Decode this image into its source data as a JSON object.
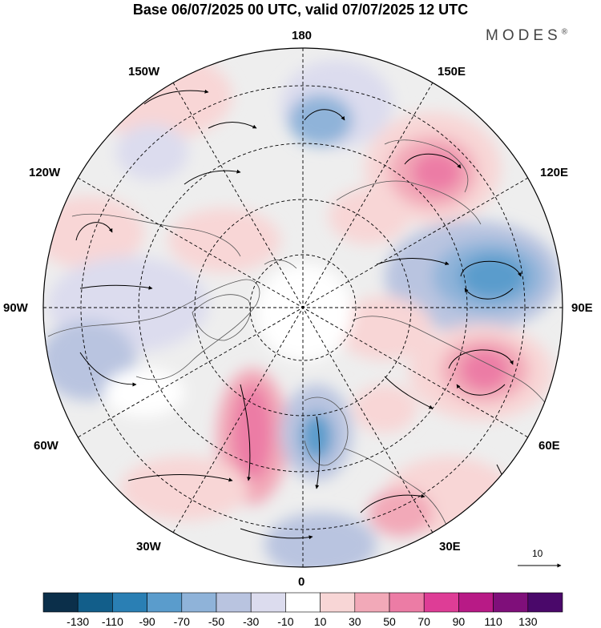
{
  "title": "Base 06/07/2025 00 UTC, valid 07/07/2025 12 UTC",
  "brand": "MODES",
  "brand_mark": "®",
  "longitude_labels": {
    "n180": "180",
    "w150": "150W",
    "e150": "150E",
    "w120": "120W",
    "e120": "120E",
    "w90": "90W",
    "e90": "90E",
    "w60": "60W",
    "e60": "60E",
    "w30": "30W",
    "e30": "30E",
    "s0": "0"
  },
  "reference_vector": {
    "label": "10"
  },
  "colorbar": {
    "labels": [
      "-130",
      "-110",
      "-90",
      "-70",
      "-50",
      "-30",
      "-10",
      "10",
      "30",
      "50",
      "70",
      "90",
      "110",
      "130"
    ],
    "colors": [
      "#0b2f4a",
      "#125e8a",
      "#2a7fb4",
      "#5a9ccc",
      "#8fb3d9",
      "#b9c4e0",
      "#dcdcee",
      "#ffffff",
      "#f8d6d6",
      "#f2a9b8",
      "#ec7ca5",
      "#de3d96",
      "#b81a86",
      "#7f0f7a",
      "#4a086a"
    ]
  },
  "colors": {
    "ocean": "#dcdcee",
    "land_neutral": "#f0f0f0",
    "coast": "#555555"
  }
}
